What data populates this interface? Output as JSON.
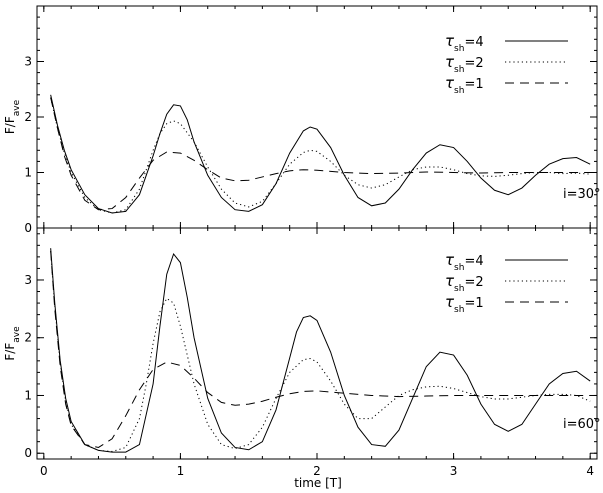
{
  "chart_data": [
    {
      "type": "line",
      "panel": "top",
      "annotation": "i=30°",
      "xlabel": "time [T]",
      "ylabel": "F/F",
      "ylabel_sub": "ave",
      "xlim": [
        -0.05,
        4.05
      ],
      "ylim": [
        0,
        4
      ],
      "xticks": [
        0,
        1,
        2,
        3,
        4
      ],
      "yticks": [
        0,
        1,
        2,
        3
      ],
      "legend_position": "top-right",
      "series": [
        {
          "name_symbol": "τ",
          "name_sub": "sh",
          "name_value": "=4",
          "style": "solid",
          "x": [
            0.05,
            0.1,
            0.15,
            0.2,
            0.3,
            0.4,
            0.5,
            0.6,
            0.7,
            0.8,
            0.85,
            0.9,
            0.95,
            1.0,
            1.05,
            1.1,
            1.2,
            1.3,
            1.4,
            1.5,
            1.6,
            1.7,
            1.8,
            1.9,
            1.95,
            2.0,
            2.1,
            2.2,
            2.3,
            2.4,
            2.5,
            2.6,
            2.7,
            2.8,
            2.9,
            3.0,
            3.1,
            3.2,
            3.3,
            3.4,
            3.5,
            3.6,
            3.7,
            3.8,
            3.9,
            4.0
          ],
          "y": [
            2.4,
            1.85,
            1.4,
            1.05,
            0.6,
            0.35,
            0.27,
            0.3,
            0.6,
            1.3,
            1.7,
            2.05,
            2.22,
            2.2,
            1.95,
            1.55,
            0.95,
            0.55,
            0.33,
            0.3,
            0.42,
            0.8,
            1.35,
            1.75,
            1.82,
            1.78,
            1.45,
            0.95,
            0.55,
            0.4,
            0.45,
            0.7,
            1.05,
            1.35,
            1.5,
            1.45,
            1.2,
            0.9,
            0.68,
            0.6,
            0.72,
            0.95,
            1.15,
            1.25,
            1.27,
            1.15
          ]
        },
        {
          "name_symbol": "τ",
          "name_sub": "sh",
          "name_value": "=2",
          "style": "dotted",
          "x": [
            0.05,
            0.1,
            0.15,
            0.2,
            0.3,
            0.4,
            0.5,
            0.6,
            0.7,
            0.8,
            0.85,
            0.9,
            0.95,
            1.0,
            1.1,
            1.2,
            1.3,
            1.4,
            1.5,
            1.6,
            1.7,
            1.8,
            1.9,
            1.95,
            2.0,
            2.1,
            2.2,
            2.3,
            2.4,
            2.5,
            2.6,
            2.7,
            2.8,
            2.9,
            3.0,
            3.1,
            3.2,
            3.3,
            3.4,
            3.5,
            3.6,
            3.7,
            3.8,
            3.9,
            4.0
          ],
          "y": [
            2.35,
            1.8,
            1.35,
            1.0,
            0.55,
            0.33,
            0.27,
            0.33,
            0.7,
            1.4,
            1.7,
            1.88,
            1.93,
            1.88,
            1.55,
            1.1,
            0.7,
            0.45,
            0.38,
            0.48,
            0.8,
            1.15,
            1.36,
            1.4,
            1.38,
            1.2,
            0.95,
            0.78,
            0.72,
            0.78,
            0.92,
            1.05,
            1.1,
            1.1,
            1.05,
            0.98,
            0.94,
            0.93,
            0.95,
            0.98,
            1.0,
            1.0,
            0.98,
            0.99,
            0.97
          ]
        },
        {
          "name_symbol": "τ",
          "name_sub": "sh",
          "name_value": "=1",
          "style": "dashed",
          "x": [
            0.05,
            0.1,
            0.15,
            0.2,
            0.3,
            0.4,
            0.5,
            0.6,
            0.7,
            0.8,
            0.9,
            1.0,
            1.1,
            1.2,
            1.3,
            1.4,
            1.5,
            1.6,
            1.7,
            1.8,
            1.9,
            2.0,
            2.2,
            2.4,
            2.6,
            2.8,
            3.0,
            3.2,
            3.4,
            3.6,
            3.8,
            4.0
          ],
          "y": [
            2.35,
            1.8,
            1.3,
            0.95,
            0.5,
            0.33,
            0.35,
            0.55,
            0.9,
            1.22,
            1.37,
            1.35,
            1.22,
            1.05,
            0.9,
            0.85,
            0.86,
            0.92,
            0.98,
            1.03,
            1.05,
            1.04,
            1.0,
            0.98,
            0.99,
            1.01,
            1.0,
            0.99,
            1.0,
            1.0,
            1.0,
            1.0
          ]
        }
      ]
    },
    {
      "type": "line",
      "panel": "bottom",
      "annotation": "i=60°",
      "xlabel": "time [T]",
      "ylabel": "F/F",
      "ylabel_sub": "ave",
      "xlim": [
        -0.05,
        4.05
      ],
      "ylim": [
        -0.1,
        3.9
      ],
      "xticks": [
        0,
        1,
        2,
        3,
        4
      ],
      "yticks": [
        0,
        1,
        2,
        3
      ],
      "legend_position": "top-right",
      "series": [
        {
          "name_symbol": "τ",
          "name_sub": "sh",
          "name_value": "=4",
          "style": "solid",
          "x": [
            0.05,
            0.08,
            0.12,
            0.16,
            0.2,
            0.3,
            0.4,
            0.5,
            0.6,
            0.7,
            0.8,
            0.85,
            0.9,
            0.95,
            1.0,
            1.05,
            1.1,
            1.2,
            1.3,
            1.4,
            1.5,
            1.6,
            1.7,
            1.8,
            1.85,
            1.9,
            1.95,
            2.0,
            2.1,
            2.2,
            2.3,
            2.4,
            2.5,
            2.6,
            2.7,
            2.8,
            2.9,
            3.0,
            3.1,
            3.2,
            3.3,
            3.4,
            3.5,
            3.6,
            3.7,
            3.8,
            3.9,
            4.0
          ],
          "y": [
            3.55,
            2.6,
            1.6,
            0.95,
            0.55,
            0.15,
            0.05,
            0.02,
            0.02,
            0.15,
            1.2,
            2.2,
            3.1,
            3.45,
            3.3,
            2.7,
            2.0,
            0.95,
            0.35,
            0.1,
            0.06,
            0.2,
            0.75,
            1.65,
            2.1,
            2.35,
            2.38,
            2.3,
            1.75,
            1.0,
            0.45,
            0.15,
            0.12,
            0.4,
            0.95,
            1.5,
            1.75,
            1.7,
            1.35,
            0.85,
            0.5,
            0.38,
            0.5,
            0.85,
            1.2,
            1.38,
            1.42,
            1.25
          ]
        },
        {
          "name_symbol": "τ",
          "name_sub": "sh",
          "name_value": "=2",
          "style": "dotted",
          "x": [
            0.05,
            0.08,
            0.12,
            0.16,
            0.2,
            0.3,
            0.4,
            0.5,
            0.6,
            0.7,
            0.75,
            0.8,
            0.85,
            0.9,
            0.95,
            1.0,
            1.05,
            1.1,
            1.2,
            1.3,
            1.4,
            1.5,
            1.6,
            1.7,
            1.8,
            1.9,
            1.95,
            2.0,
            2.1,
            2.2,
            2.3,
            2.4,
            2.5,
            2.6,
            2.7,
            2.8,
            2.9,
            3.0,
            3.1,
            3.2,
            3.3,
            3.4,
            3.5,
            3.6,
            3.7,
            3.8,
            3.9,
            4.0
          ],
          "y": [
            3.5,
            2.55,
            1.55,
            0.9,
            0.5,
            0.15,
            0.05,
            0.03,
            0.1,
            0.6,
            1.2,
            1.9,
            2.45,
            2.68,
            2.6,
            2.2,
            1.7,
            1.2,
            0.5,
            0.15,
            0.08,
            0.15,
            0.45,
            0.95,
            1.4,
            1.62,
            1.64,
            1.58,
            1.25,
            0.85,
            0.6,
            0.6,
            0.8,
            1.0,
            1.1,
            1.15,
            1.16,
            1.12,
            1.05,
            0.98,
            0.94,
            0.94,
            0.97,
            1.0,
            1.02,
            1.02,
            1.0,
            0.9
          ]
        },
        {
          "name_symbol": "τ",
          "name_sub": "sh",
          "name_value": "=1",
          "style": "dashed",
          "x": [
            0.05,
            0.08,
            0.12,
            0.16,
            0.2,
            0.3,
            0.4,
            0.5,
            0.6,
            0.7,
            0.8,
            0.9,
            1.0,
            1.1,
            1.2,
            1.3,
            1.4,
            1.5,
            1.6,
            1.7,
            1.8,
            1.9,
            2.0,
            2.2,
            2.4,
            2.6,
            2.8,
            3.0,
            3.2,
            3.4,
            3.6,
            3.8,
            4.0
          ],
          "y": [
            3.5,
            2.5,
            1.5,
            0.85,
            0.48,
            0.15,
            0.1,
            0.25,
            0.65,
            1.1,
            1.45,
            1.58,
            1.52,
            1.3,
            1.05,
            0.88,
            0.83,
            0.85,
            0.9,
            0.97,
            1.03,
            1.07,
            1.08,
            1.04,
            1.0,
            0.98,
            0.99,
            1.0,
            1.0,
            1.0,
            1.0,
            1.0,
            1.0
          ]
        }
      ]
    }
  ]
}
